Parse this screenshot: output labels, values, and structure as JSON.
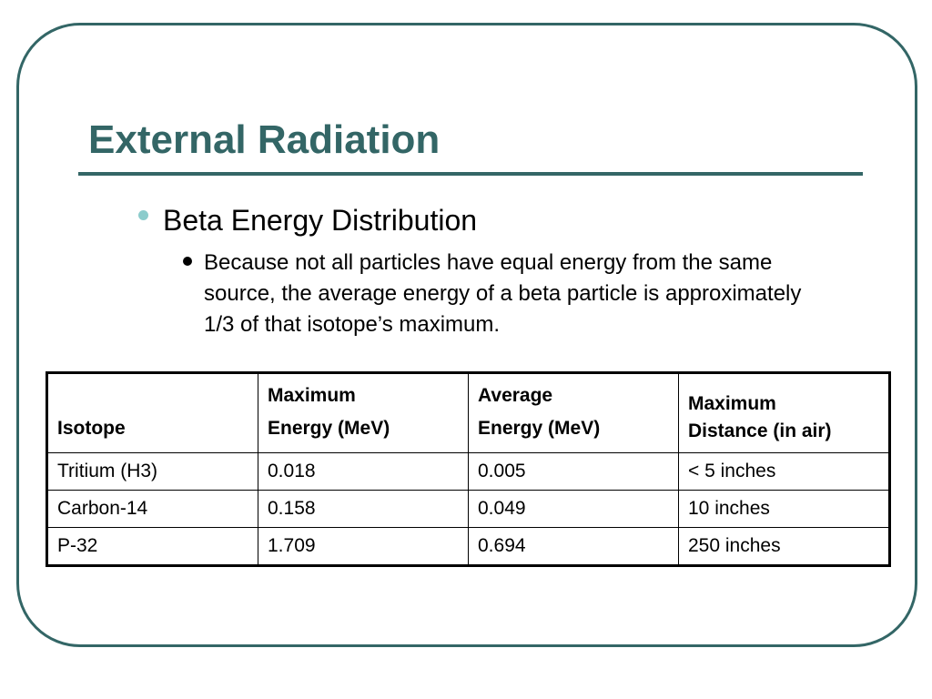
{
  "slide": {
    "title": "External Radiation",
    "bullets": [
      {
        "level": 1,
        "text": "Beta Energy Distribution",
        "icon": "bullet-dot-teal"
      },
      {
        "level": 2,
        "text": "Because not all particles have equal energy from the same source, the average energy of a beta particle is approximately 1/3 of that isotope’s maximum.",
        "icon": "bullet-dot-black"
      }
    ],
    "colors": {
      "accent": "#336666",
      "bullet_level1": "#8ccccc",
      "text": "#000000"
    }
  },
  "table": {
    "headers": [
      {
        "line1": "",
        "line2": "Isotope"
      },
      {
        "line1": "Maximum",
        "line2": "Energy (MeV)"
      },
      {
        "line1": "Average",
        "line2": "Energy (MeV)"
      },
      {
        "line1": "Maximum",
        "line2": "Distance (in air)"
      }
    ],
    "rows": [
      [
        "Tritium (H3)",
        "0.018",
        "0.005",
        "< 5 inches"
      ],
      [
        "Carbon-14",
        "0.158",
        "0.049",
        "10 inches"
      ],
      [
        "P-32",
        "1.709",
        "0.694",
        "250 inches"
      ]
    ]
  }
}
